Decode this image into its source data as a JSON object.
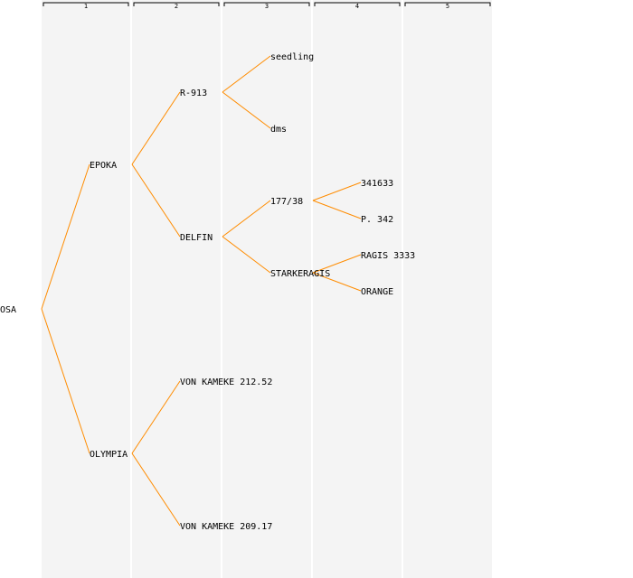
{
  "generations": [
    "1",
    "2",
    "3",
    "4",
    "5"
  ],
  "colors": {
    "edge": "#ff8c00",
    "band": "#f4f4f4",
    "text": "#000000"
  },
  "tree": {
    "name": "OSA",
    "children": [
      {
        "name": "EPOKA",
        "children": [
          {
            "name": "R-913",
            "children": [
              {
                "name": "seedling"
              },
              {
                "name": "dms"
              }
            ]
          },
          {
            "name": "DELFIN",
            "children": [
              {
                "name": "177/38",
                "children": [
                  {
                    "name": "341633"
                  },
                  {
                    "name": "P. 342"
                  }
                ]
              },
              {
                "name": "STARKERAGIS",
                "children": [
                  {
                    "name": "RAGIS 3333"
                  },
                  {
                    "name": "ORANGE"
                  }
                ]
              }
            ]
          }
        ]
      },
      {
        "name": "OLYMPIA",
        "children": [
          {
            "name": "VON KAMEKE 212.52"
          },
          {
            "name": "VON KAMEKE 209.17"
          }
        ]
      }
    ]
  }
}
